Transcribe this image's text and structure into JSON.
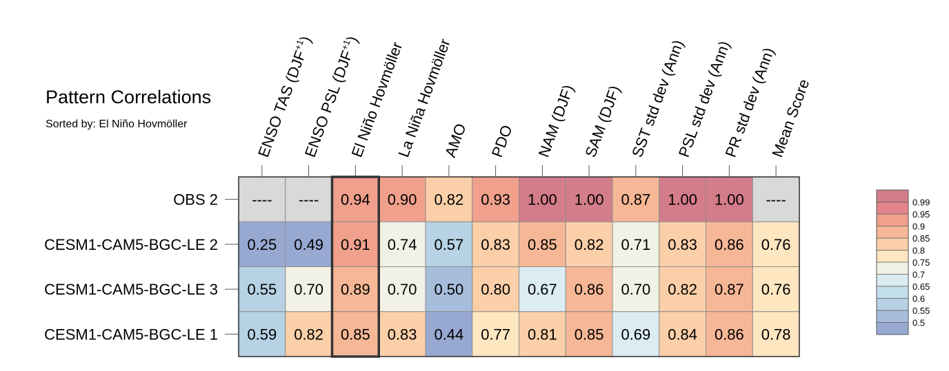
{
  "title": "Pattern Correlations",
  "subtitle": "Sorted by: El Niño Hovmöller",
  "chart_data": {
    "type": "heatmap",
    "columns": [
      {
        "label": "ENSO TAS (DJF",
        "sup": "+1",
        "close": ")"
      },
      {
        "label": "ENSO PSL (DJF",
        "sup": "+1",
        "close": ")"
      },
      {
        "label": "El Niño Hovmöller",
        "sup": "",
        "close": ""
      },
      {
        "label": "La Niña Hovmöller",
        "sup": "",
        "close": ""
      },
      {
        "label": "AMO",
        "sup": "",
        "close": ""
      },
      {
        "label": "PDO",
        "sup": "",
        "close": ""
      },
      {
        "label": "NAM (DJF)",
        "sup": "",
        "close": ""
      },
      {
        "label": "SAM (DJF)",
        "sup": "",
        "close": ""
      },
      {
        "label": "SST std dev (Ann)",
        "sup": "",
        "close": ""
      },
      {
        "label": "PSL std dev (Ann)",
        "sup": "",
        "close": ""
      },
      {
        "label": "PR std dev (Ann)",
        "sup": "",
        "close": ""
      },
      {
        "label": "Mean Score",
        "sup": "",
        "close": ""
      }
    ],
    "rows": [
      "OBS 2",
      "CESM1-CAM5-BGC-LE 2",
      "CESM1-CAM5-BGC-LE 3",
      "CESM1-CAM5-BGC-LE 1"
    ],
    "values": [
      [
        null,
        null,
        0.94,
        0.9,
        0.82,
        0.93,
        1.0,
        1.0,
        0.87,
        1.0,
        1.0,
        null
      ],
      [
        0.25,
        0.49,
        0.91,
        0.74,
        0.57,
        0.83,
        0.85,
        0.82,
        0.71,
        0.83,
        0.86,
        0.76
      ],
      [
        0.55,
        0.7,
        0.89,
        0.7,
        0.5,
        0.8,
        0.67,
        0.86,
        0.7,
        0.82,
        0.87,
        0.76
      ],
      [
        0.59,
        0.82,
        0.85,
        0.83,
        0.44,
        0.77,
        0.81,
        0.85,
        0.69,
        0.84,
        0.86,
        0.78
      ]
    ],
    "missing_label": "----",
    "missing_color": "#d9d9d9",
    "highlight_column": "El Niño Hovmöller",
    "colorbar": {
      "levels": [
        "0.99",
        "0.95",
        "0.9",
        "0.85",
        "0.8",
        "0.75",
        "0.7",
        "0.65",
        "0.6",
        "0.55",
        "0.5"
      ],
      "bins": [
        {
          "min": 0.99,
          "color": "#d47d8a"
        },
        {
          "min": 0.95,
          "color": "#e3838a"
        },
        {
          "min": 0.9,
          "color": "#f0a08c"
        },
        {
          "min": 0.85,
          "color": "#f6b796"
        },
        {
          "min": 0.8,
          "color": "#fbcfa8"
        },
        {
          "min": 0.75,
          "color": "#fde6c0"
        },
        {
          "min": 0.7,
          "color": "#f2f1e6"
        },
        {
          "min": 0.65,
          "color": "#dbecf3"
        },
        {
          "min": 0.6,
          "color": "#c4dfec"
        },
        {
          "min": 0.55,
          "color": "#b6d2e4"
        },
        {
          "min": 0.5,
          "color": "#a6bddb"
        },
        {
          "min": -1.0,
          "color": "#97a9d1"
        }
      ]
    }
  }
}
